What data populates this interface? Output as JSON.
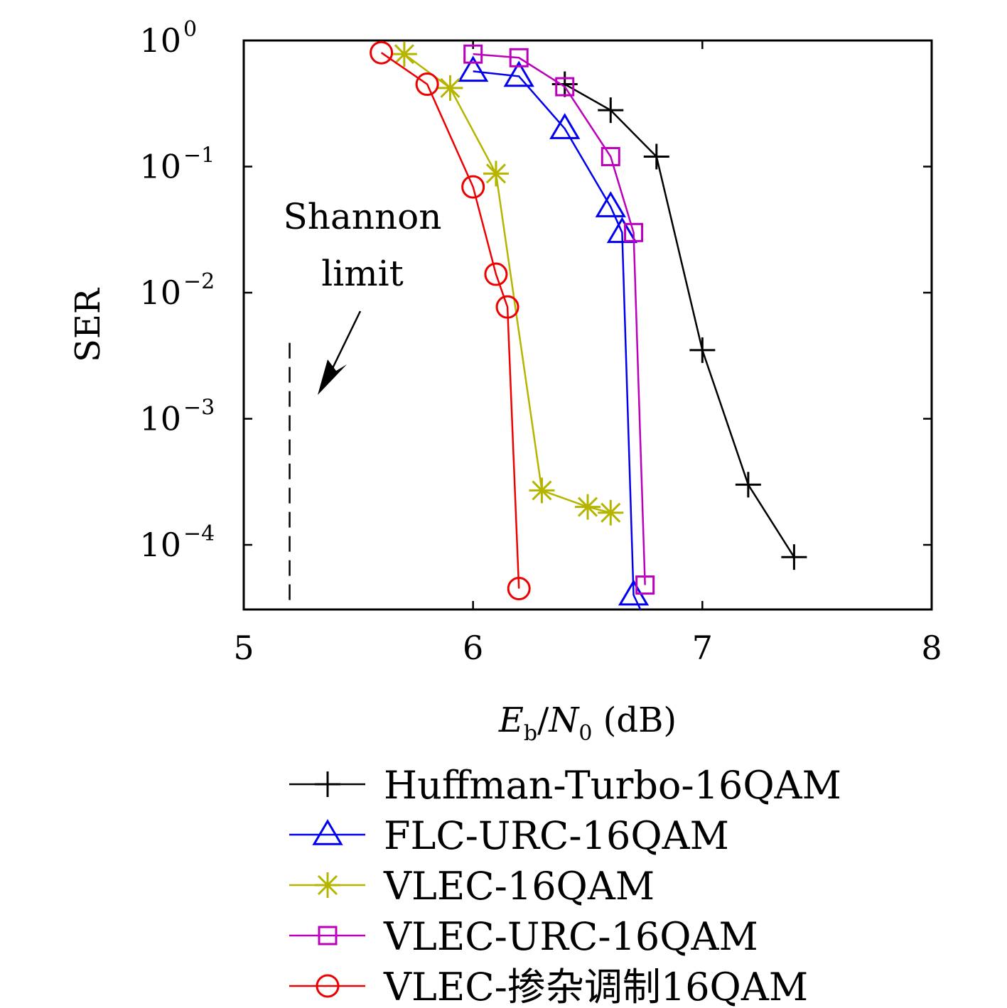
{
  "chart_data": {
    "type": "line",
    "xlabel": "E_b/N_0 (dB)",
    "xlabel_parts": {
      "e": "E",
      "e_sub": "b",
      "slash": "/",
      "n": "N",
      "n_sub": "0",
      "unit": " (dB)"
    },
    "ylabel": "SER",
    "x_scale": "linear",
    "y_scale": "log",
    "xlim": [
      5,
      8
    ],
    "ylim": [
      3e-05,
      1
    ],
    "x_ticks": [
      5,
      6,
      7,
      8
    ],
    "x_tick_labels": [
      "5",
      "6",
      "7",
      "8"
    ],
    "y_ticks": [
      1,
      0.1,
      0.01,
      0.001,
      0.0001
    ],
    "y_tick_labels": [
      {
        "base": "10",
        "exp": "0"
      },
      {
        "base": "10",
        "exp": "−1"
      },
      {
        "base": "10",
        "exp": "−2"
      },
      {
        "base": "10",
        "exp": "−3"
      },
      {
        "base": "10",
        "exp": "−4"
      }
    ],
    "grid": false,
    "legend_position": "below",
    "series": [
      {
        "name": "Huffman-Turbo-16QAM",
        "color": "#000000",
        "marker": "plus",
        "x": [
          6.4,
          6.6,
          6.8,
          7.0,
          7.2,
          7.4
        ],
        "y": [
          0.45,
          0.28,
          0.12,
          0.0035,
          0.0003,
          8e-05
        ]
      },
      {
        "name": "FLC-URC-16QAM",
        "color": "#0000ee",
        "marker": "triangle",
        "x": [
          6.0,
          6.2,
          6.4,
          6.6,
          6.65,
          6.7,
          6.73
        ],
        "y": [
          0.57,
          0.52,
          0.2,
          0.048,
          0.03,
          4e-05,
          3e-05
        ],
        "marker_count": 6
      },
      {
        "name": "VLEC-16QAM",
        "color": "#b5b500",
        "marker": "star",
        "x": [
          5.7,
          5.9,
          6.1,
          6.3,
          6.5,
          6.6
        ],
        "y": [
          0.78,
          0.42,
          0.088,
          0.00027,
          0.0002,
          0.00018
        ]
      },
      {
        "name": "VLEC-URC-16QAM",
        "color": "#bb00bb",
        "marker": "square",
        "x": [
          6.0,
          6.2,
          6.4,
          6.6,
          6.7,
          6.75
        ],
        "y": [
          0.78,
          0.73,
          0.43,
          0.12,
          0.03,
          4.8e-05
        ]
      },
      {
        "name": "VLEC-掺杂调制16QAM",
        "color": "#ee0000",
        "marker": "circle",
        "x": [
          5.6,
          5.8,
          6.0,
          6.1,
          6.15,
          6.2
        ],
        "y": [
          0.8,
          0.45,
          0.069,
          0.014,
          0.0077,
          4.5e-05
        ]
      }
    ],
    "annotations": {
      "shannon_limit": {
        "line1": "Shannon",
        "line2": "limit",
        "x": 5.2,
        "y_top": 0.004
      }
    }
  }
}
